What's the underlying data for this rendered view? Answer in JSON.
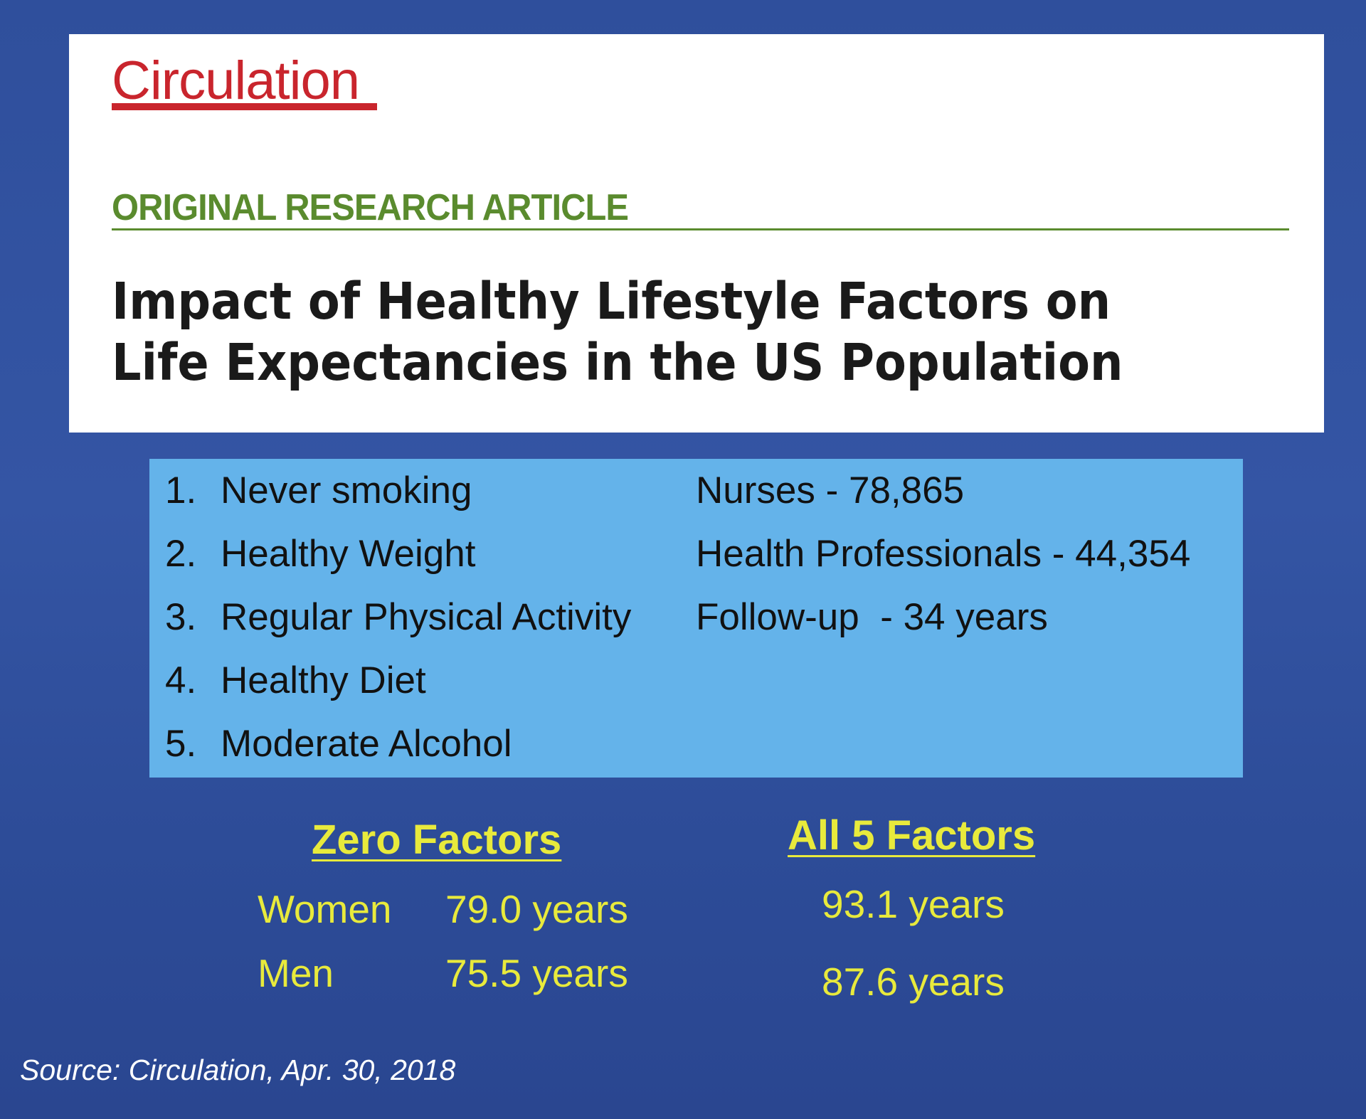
{
  "journal": {
    "name": "Circulation",
    "color": "#c9252d"
  },
  "article": {
    "type_label": "ORIGINAL RESEARCH ARTICLE",
    "title": "Impact of Healthy Lifestyle Factors on Life Expectancies in the US Population"
  },
  "factors": [
    {
      "number": "1.",
      "label": "Never smoking"
    },
    {
      "number": "2.",
      "label": "Healthy Weight"
    },
    {
      "number": "3.",
      "label": "Regular Physical Activity"
    },
    {
      "number": "4.",
      "label": "Healthy Diet"
    },
    {
      "number": "5.",
      "label": "Moderate Alcohol"
    }
  ],
  "study_info": [
    "Nurses - 78,865",
    "Health Professionals - 44,354",
    "Follow-up  - 34 years"
  ],
  "results": {
    "zero_heading": "Zero Factors",
    "all_heading": "All 5 Factors",
    "rows": [
      {
        "label": "Women",
        "zero": "79.0 years",
        "all": "93.1 years"
      },
      {
        "label": "Men",
        "zero": "75.5 years",
        "all": "87.6 years"
      }
    ]
  },
  "source": "Source: Circulation, Apr. 30, 2018",
  "colors": {
    "background": "#3455a4",
    "info_box": "#64b3ea",
    "results_text": "#e8ea3c",
    "section_label": "#5a8b2e"
  }
}
